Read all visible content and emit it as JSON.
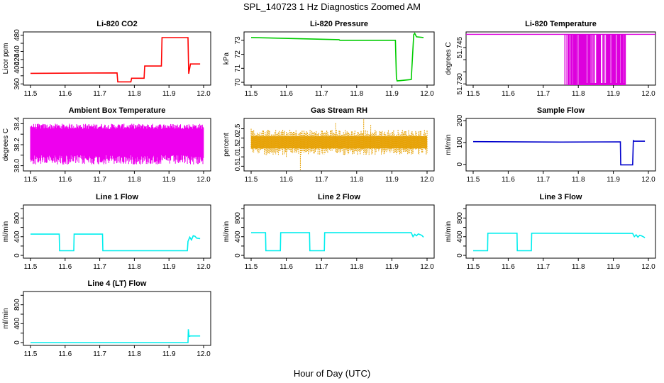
{
  "figure": {
    "title": "SPL_140723  1 Hz Diagnostics Zoomed AM",
    "xlabel": "Hour of Day (UTC)"
  },
  "chart_data": [
    {
      "type": "line",
      "title": "Li-820 CO2",
      "ylabel": "Licor ppm",
      "color": "#ff0000",
      "xlim": [
        11.5,
        12.0
      ],
      "ylim": [
        357,
        488
      ],
      "xticks": [
        11.5,
        11.6,
        11.7,
        11.8,
        11.9,
        12.0
      ],
      "yticks": [
        360,
        380,
        400,
        420,
        440,
        460,
        480
      ],
      "yticklabels": [
        "360",
        "",
        "400",
        "420",
        "440",
        "",
        "480"
      ],
      "x": [
        11.5,
        11.75,
        11.752,
        11.79,
        11.792,
        11.828,
        11.83,
        11.878,
        11.88,
        11.955,
        11.957,
        11.962,
        11.99
      ],
      "y": [
        386,
        387,
        365,
        365,
        374,
        374,
        404,
        404,
        474,
        474,
        385,
        409,
        409
      ]
    },
    {
      "type": "line",
      "title": "Li-820 Pressure",
      "ylabel": "kPa",
      "color": "#00cc00",
      "xlim": [
        11.5,
        12.0
      ],
      "ylim": [
        69.8,
        73.6
      ],
      "xticks": [
        11.5,
        11.6,
        11.7,
        11.8,
        11.9,
        12.0
      ],
      "yticks": [
        70,
        71,
        72,
        73
      ],
      "yticklabels": [
        "70",
        "71",
        "72",
        "73"
      ],
      "x": [
        11.5,
        11.75,
        11.752,
        11.91,
        11.913,
        11.915,
        11.955,
        11.962,
        11.965,
        11.97,
        11.99
      ],
      "y": [
        73.2,
        73.05,
        73.0,
        73.0,
        70.3,
        70.1,
        70.2,
        73.4,
        73.5,
        73.25,
        73.2
      ]
    },
    {
      "type": "line",
      "title": "Li-820 Temperature",
      "ylabel": "degrees C",
      "color": "#dd00dd",
      "xlim": [
        11.5,
        12.0
      ],
      "ylim": [
        51.7295,
        51.7515
      ],
      "xticks": [
        11.5,
        11.6,
        11.7,
        11.8,
        11.9,
        12.0
      ],
      "yticks": [
        51.73,
        51.735,
        51.74,
        51.745
      ],
      "yticklabels": [
        "51.730",
        "",
        "",
        "51.745"
      ],
      "baseline": 51.7505,
      "low": 51.7295,
      "burst_range": [
        11.76,
        11.935
      ]
    },
    {
      "type": "line",
      "title": "Ambient Box Temperature",
      "ylabel": "degrees C",
      "color": "#ee00ee",
      "xlim": [
        11.5,
        12.0
      ],
      "ylim": [
        37.95,
        38.45
      ],
      "xticks": [
        11.5,
        11.6,
        11.7,
        11.8,
        11.9,
        12.0
      ],
      "yticks": [
        38.0,
        38.1,
        38.2,
        38.3,
        38.4
      ],
      "yticklabels": [
        "38.0",
        "",
        "38.2",
        "",
        "38.4"
      ],
      "low": 38.1,
      "high": 38.35
    },
    {
      "type": "scatter",
      "title": "Gas Stream RH",
      "ylabel": "percent",
      "color": "#e6a000",
      "xlim": [
        11.5,
        12.0
      ],
      "ylim": [
        0.25,
        3.05
      ],
      "xticks": [
        11.5,
        11.6,
        11.7,
        11.8,
        11.9,
        12.0
      ],
      "yticks": [
        0.5,
        1.0,
        1.5,
        2.0,
        2.5
      ],
      "yticklabels": [
        "0.5",
        "1.0",
        "1.5",
        "2.0",
        "2.5"
      ],
      "band": [
        1.45,
        2.1
      ]
    },
    {
      "type": "line",
      "title": "Sample Flow",
      "ylabel": "ml/min",
      "color": "#0000cc",
      "xlim": [
        11.5,
        12.0
      ],
      "ylim": [
        -30,
        210
      ],
      "xticks": [
        11.5,
        11.6,
        11.7,
        11.8,
        11.9,
        12.0
      ],
      "yticks": [
        0,
        100,
        200
      ],
      "yticklabels": [
        "0",
        "100",
        "200"
      ],
      "x": [
        11.5,
        11.75,
        11.92,
        11.921,
        11.955,
        11.957,
        11.96,
        11.99
      ],
      "y": [
        104,
        102,
        103,
        -2,
        -2,
        108,
        106,
        106
      ]
    },
    {
      "type": "line",
      "title": "Line 1 Flow",
      "ylabel": "ml/min",
      "color": "#00eeee",
      "xlim": [
        11.5,
        12.0
      ],
      "ylim": [
        -60,
        1080
      ],
      "xticks": [
        11.5,
        11.6,
        11.7,
        11.8,
        11.9,
        12.0
      ],
      "yticks": [
        0,
        200,
        400,
        600,
        800,
        1000
      ],
      "yticklabels": [
        "0",
        "",
        "400",
        "",
        "800",
        ""
      ],
      "x": [
        11.5,
        11.583,
        11.584,
        11.625,
        11.626,
        11.708,
        11.709,
        11.953,
        11.955,
        11.96,
        11.965,
        11.97,
        11.975,
        11.98,
        11.99
      ],
      "y": [
        455,
        455,
        100,
        100,
        455,
        455,
        100,
        100,
        300,
        390,
        330,
        420,
        410,
        370,
        360
      ]
    },
    {
      "type": "line",
      "title": "Line 2 Flow",
      "ylabel": "ml/min",
      "color": "#00eeee",
      "xlim": [
        11.5,
        12.0
      ],
      "ylim": [
        -60,
        1080
      ],
      "xticks": [
        11.5,
        11.6,
        11.7,
        11.8,
        11.9,
        12.0
      ],
      "yticks": [
        0,
        200,
        400,
        600,
        800,
        1000
      ],
      "yticklabels": [
        "0",
        "",
        "400",
        "",
        "800",
        ""
      ],
      "x": [
        11.5,
        11.541,
        11.542,
        11.583,
        11.584,
        11.666,
        11.667,
        11.708,
        11.709,
        11.955,
        11.96,
        11.965,
        11.97,
        11.975,
        11.985,
        11.99
      ],
      "y": [
        485,
        485,
        100,
        100,
        485,
        485,
        100,
        100,
        485,
        485,
        400,
        450,
        420,
        460,
        430,
        390
      ]
    },
    {
      "type": "line",
      "title": "Line 3 Flow",
      "ylabel": "ml/min",
      "color": "#00eeee",
      "xlim": [
        11.5,
        12.0
      ],
      "ylim": [
        -60,
        1080
      ],
      "xticks": [
        11.5,
        11.6,
        11.7,
        11.8,
        11.9,
        12.0
      ],
      "yticks": [
        0,
        200,
        400,
        600,
        800,
        1000
      ],
      "yticklabels": [
        "0",
        "",
        "400",
        "",
        "800",
        ""
      ],
      "x": [
        11.5,
        11.541,
        11.542,
        11.625,
        11.626,
        11.666,
        11.667,
        11.955,
        11.96,
        11.965,
        11.97,
        11.975,
        11.98,
        11.985,
        11.99
      ],
      "y": [
        100,
        100,
        475,
        475,
        100,
        100,
        475,
        470,
        400,
        440,
        390,
        430,
        420,
        400,
        380
      ]
    },
    {
      "type": "line",
      "title": "Line 4 (LT) Flow",
      "ylabel": "ml/min",
      "color": "#00eeee",
      "xlim": [
        11.5,
        12.0
      ],
      "ylim": [
        -60,
        1080
      ],
      "xticks": [
        11.5,
        11.6,
        11.7,
        11.8,
        11.9,
        12.0
      ],
      "yticks": [
        0,
        200,
        400,
        600,
        800,
        1000
      ],
      "yticklabels": [
        "0",
        "",
        "400",
        "",
        "800",
        ""
      ],
      "x": [
        11.5,
        11.955,
        11.956,
        11.958,
        11.962,
        11.99
      ],
      "y": [
        0,
        0,
        280,
        130,
        140,
        140
      ]
    }
  ]
}
